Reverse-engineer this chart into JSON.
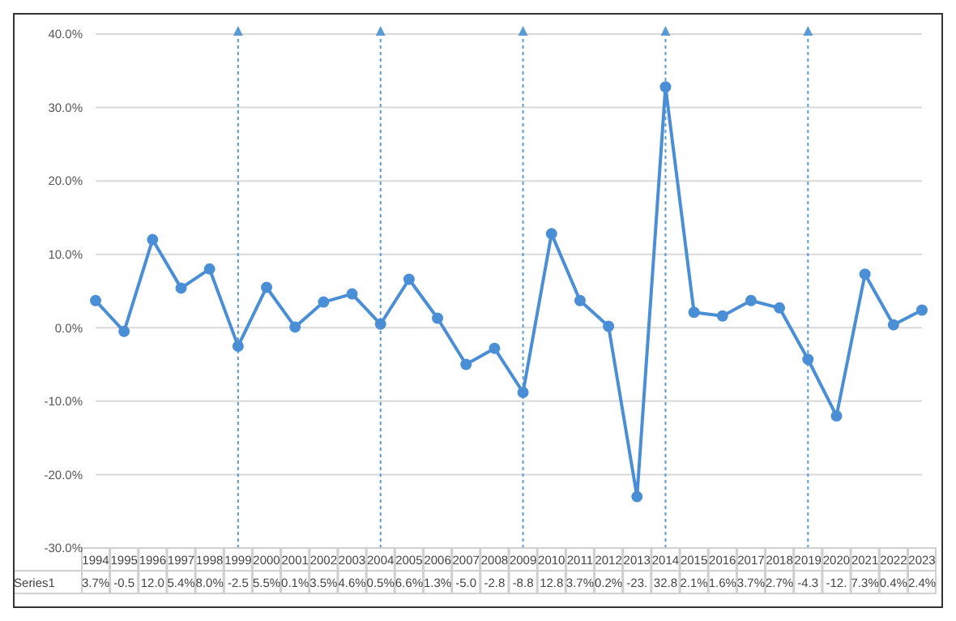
{
  "chart_data": {
    "type": "line",
    "categories": [
      "1994",
      "1995",
      "1996",
      "1997",
      "1998",
      "1999",
      "2000",
      "2001",
      "2002",
      "2003",
      "2004",
      "2005",
      "2006",
      "2007",
      "2008",
      "2009",
      "2010",
      "2011",
      "2012",
      "2013",
      "2014",
      "2015",
      "2016",
      "2017",
      "2018",
      "2019",
      "2020",
      "2021",
      "2022",
      "2023"
    ],
    "series": [
      {
        "name": "Series1",
        "color": "#4a8fd6",
        "values": [
          3.7,
          -0.5,
          12.0,
          5.4,
          8.0,
          -2.5,
          5.5,
          0.1,
          3.5,
          4.6,
          0.5,
          6.6,
          1.3,
          -5.0,
          -2.8,
          -8.8,
          12.8,
          3.7,
          0.2,
          -23,
          32.8,
          2.1,
          1.6,
          3.7,
          2.7,
          -4.3,
          -12.0,
          7.3,
          0.4,
          2.4
        ],
        "value_labels": [
          "3.7%",
          "-0.5",
          "12.0",
          "5.4%",
          "8.0%",
          "-2.5",
          "5.5%",
          "0.1%",
          "3.5%",
          "4.6%",
          "0.5%",
          "6.6%",
          "1.3%",
          "-5.0",
          "-2.8",
          "-8.8",
          "12.8",
          "3.7%",
          "0.2%",
          "-23.",
          "32.8",
          "2.1%",
          "1.6%",
          "3.7%",
          "2.7%",
          "-4.3",
          "-12.",
          "7.3%",
          "0.4%",
          "2.4%"
        ]
      }
    ],
    "ylim": [
      -30,
      40
    ],
    "yticks": [
      {
        "value": -30,
        "label": "-30.0%"
      },
      {
        "value": -20,
        "label": "-20.0%"
      },
      {
        "value": -10,
        "label": "-10.0%"
      },
      {
        "value": 0,
        "label": "0.0%"
      },
      {
        "value": 10,
        "label": "10.0%"
      },
      {
        "value": 20,
        "label": "20.0%"
      },
      {
        "value": 30,
        "label": "30.0%"
      },
      {
        "value": 40,
        "label": "40.0%"
      }
    ],
    "grid": "y",
    "legend": false,
    "marker": "circle",
    "line_style": "solid",
    "ref_lines": [
      {
        "axis": "x",
        "value": "1999",
        "color": "#5b9bd5",
        "line_style": "dotted"
      },
      {
        "axis": "x",
        "value": "2004",
        "color": "#5b9bd5",
        "line_style": "dotted"
      },
      {
        "axis": "x",
        "value": "2009",
        "color": "#5b9bd5",
        "line_style": "dotted"
      },
      {
        "axis": "x",
        "value": "2014",
        "color": "#5b9bd5",
        "line_style": "dotted"
      },
      {
        "axis": "x",
        "value": "2019",
        "color": "#5b9bd5",
        "line_style": "dotted"
      }
    ]
  }
}
